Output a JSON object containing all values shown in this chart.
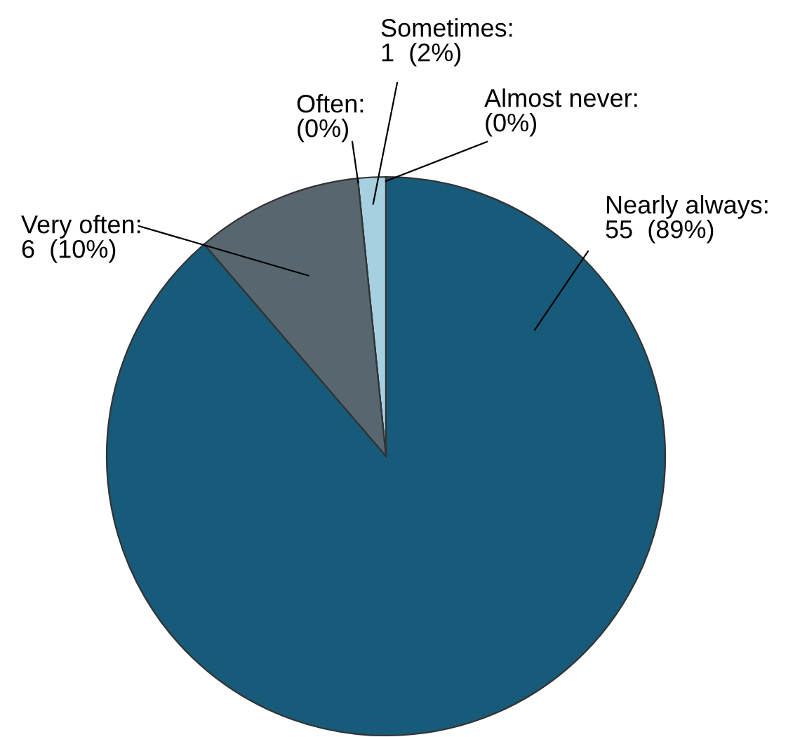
{
  "chart_data": {
    "type": "pie",
    "categories": [
      "Almost never",
      "Sometimes",
      "Often",
      "Very often",
      "Nearly always"
    ],
    "values": [
      0,
      1,
      0,
      6,
      55
    ],
    "colors": [
      "#cfe3ec",
      "#a6cfe0",
      "#8fa0ab",
      "#586670",
      "#175a7a"
    ],
    "value_labels": [
      ":\n(0%)",
      ":\n1  (2%)",
      ":\n(0%)",
      ":\n6  (10%)",
      ":\n55  (89%)"
    ]
  }
}
